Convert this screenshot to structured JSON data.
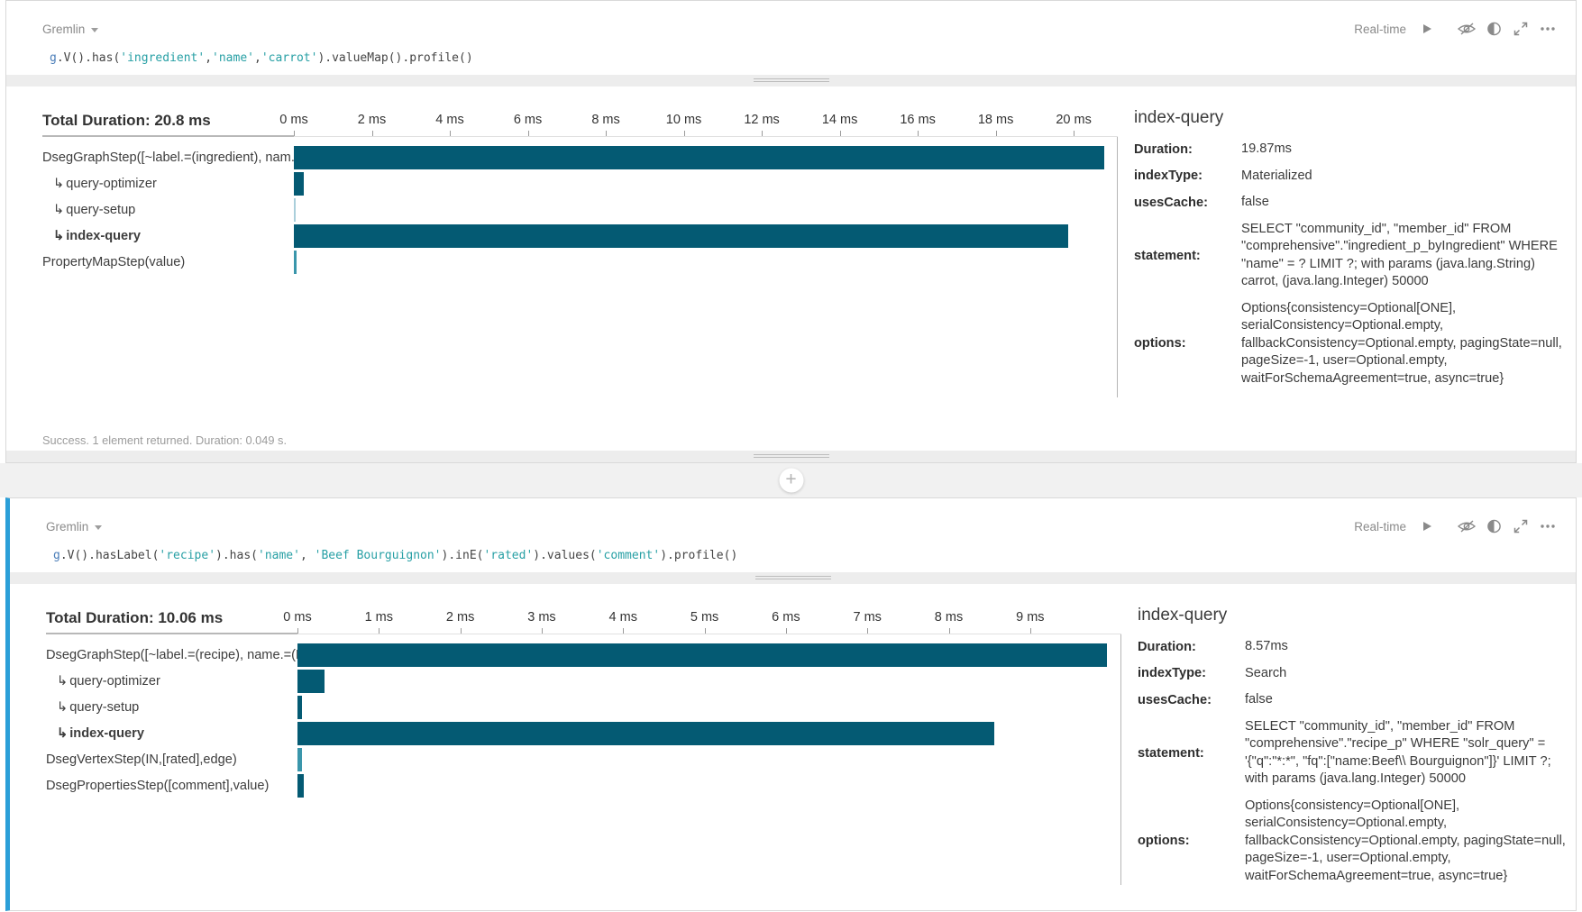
{
  "colors": {
    "bar_dark": "#045a73",
    "bar_light": "#3a96ab",
    "bar_pale": "#aacfdb",
    "active_panel_accent": "#2b9fd8"
  },
  "indent_glyph": "↳",
  "splitter": {
    "add_label": "+"
  },
  "panels": [
    {
      "language_label": "Gremlin",
      "toolbar": {
        "realtime_label": "Real-time",
        "icons": [
          "play-icon",
          "hide-results-icon",
          "toggle-view-icon",
          "expand-icon",
          "more-icon"
        ]
      },
      "query_segments": [
        {
          "t": "var",
          "text": "g"
        },
        {
          "t": "p",
          "text": ".V().has("
        },
        {
          "t": "str",
          "text": "'ingredient'"
        },
        {
          "t": "p",
          "text": ","
        },
        {
          "t": "str",
          "text": "'name'"
        },
        {
          "t": "p",
          "text": ","
        },
        {
          "t": "str",
          "text": "'carrot'"
        },
        {
          "t": "p",
          "text": ").valueMap().profile()"
        }
      ],
      "chart_data": {
        "type": "bar",
        "orientation": "horizontal",
        "title": "Total Duration: 20.8 ms",
        "x_unit": "ms",
        "xlim": [
          0,
          21.13
        ],
        "ticks_ms": [
          0,
          2,
          4,
          6,
          8,
          10,
          12,
          14,
          16,
          18,
          20
        ],
        "tick_labels": [
          "0 ms",
          "2 ms",
          "4 ms",
          "6 ms",
          "8 ms",
          "10 ms",
          "12 ms",
          "14 ms",
          "16 ms",
          "18 ms",
          "20 ms"
        ],
        "rows": [
          {
            "label": "DsegGraphStep([~label.=(ingredient), nam...",
            "value_ms": 20.8,
            "indent": false,
            "bold": false,
            "color": "dark"
          },
          {
            "label": "query-optimizer",
            "value_ms": 0.25,
            "indent": true,
            "bold": false,
            "color": "dark"
          },
          {
            "label": "query-setup",
            "value_ms": 0.05,
            "indent": true,
            "bold": false,
            "color": "pale"
          },
          {
            "label": "index-query",
            "value_ms": 19.87,
            "indent": true,
            "bold": true,
            "color": "dark"
          },
          {
            "label": "PropertyMapStep(value)",
            "value_ms": 0.06,
            "indent": false,
            "bold": false,
            "color": "light"
          }
        ]
      },
      "details": {
        "title": "index-query",
        "fields": [
          {
            "label": "Duration:",
            "value": "19.87ms"
          },
          {
            "label": "indexType:",
            "value": "Materialized"
          },
          {
            "label": "usesCache:",
            "value": "false"
          },
          {
            "label": "statement:",
            "value": "SELECT \"community_id\", \"member_id\" FROM \"comprehensive\".\"ingredient_p_byIngredient\" WHERE \"name\" = ? LIMIT ?; with params (java.lang.String) carrot, (java.lang.Integer) 50000"
          },
          {
            "label": "options:",
            "value": "Options{consistency=Optional[ONE], serialConsistency=Optional.empty, fallbackConsistency=Optional.empty, pagingState=null, pageSize=-1, user=Optional.empty, waitForSchemaAgreement=true, async=true}"
          }
        ]
      },
      "status_text": "Success. 1 element returned. Duration: 0.049 s."
    },
    {
      "active": true,
      "language_label": "Gremlin",
      "toolbar": {
        "realtime_label": "Real-time",
        "icons": [
          "play-icon",
          "hide-results-icon",
          "toggle-view-icon",
          "expand-icon",
          "more-icon"
        ]
      },
      "query_segments": [
        {
          "t": "var",
          "text": "g"
        },
        {
          "t": "p",
          "text": ".V().hasLabel("
        },
        {
          "t": "str",
          "text": "'recipe'"
        },
        {
          "t": "p",
          "text": ").has("
        },
        {
          "t": "str",
          "text": "'name'"
        },
        {
          "t": "p",
          "text": ", "
        },
        {
          "t": "str",
          "text": "'Beef Bourguignon'"
        },
        {
          "t": "p",
          "text": ").inE("
        },
        {
          "t": "str",
          "text": "'rated'"
        },
        {
          "t": "p",
          "text": ").values("
        },
        {
          "t": "str",
          "text": "'comment'"
        },
        {
          "t": "p",
          "text": ").profile()"
        }
      ],
      "chart_data": {
        "type": "bar",
        "orientation": "horizontal",
        "title": "Total Duration: 10.06 ms",
        "x_unit": "ms",
        "xlim": [
          0,
          10.12
        ],
        "ticks_ms": [
          0,
          1,
          2,
          3,
          4,
          5,
          6,
          7,
          8,
          9
        ],
        "tick_labels": [
          "0 ms",
          "1 ms",
          "2 ms",
          "3 ms",
          "4 ms",
          "5 ms",
          "6 ms",
          "7 ms",
          "8 ms",
          "9 ms"
        ],
        "rows": [
          {
            "label": "DsegGraphStep([~label.=(recipe), name.=(B..",
            "value_ms": 9.95,
            "indent": false,
            "bold": false,
            "color": "dark"
          },
          {
            "label": "query-optimizer",
            "value_ms": 0.33,
            "indent": true,
            "bold": false,
            "color": "dark"
          },
          {
            "label": "query-setup",
            "value_ms": 0.05,
            "indent": true,
            "bold": false,
            "color": "dark"
          },
          {
            "label": "index-query",
            "value_ms": 8.57,
            "indent": true,
            "bold": true,
            "color": "dark"
          },
          {
            "label": "DsegVertexStep(IN,[rated],edge)",
            "value_ms": 0.06,
            "indent": false,
            "bold": false,
            "color": "light"
          },
          {
            "label": "DsegPropertiesStep([comment],value)",
            "value_ms": 0.08,
            "indent": false,
            "bold": false,
            "color": "dark"
          }
        ]
      },
      "details": {
        "title": "index-query",
        "fields": [
          {
            "label": "Duration:",
            "value": "8.57ms"
          },
          {
            "label": "indexType:",
            "value": "Search"
          },
          {
            "label": "usesCache:",
            "value": "false"
          },
          {
            "label": "statement:",
            "value": "SELECT \"community_id\", \"member_id\" FROM \"comprehensive\".\"recipe_p\" WHERE \"solr_query\" = '{\"q\":\"*:*\", \"fq\":[\"name:Beef\\\\ Bourguignon\"]}' LIMIT ?; with params (java.lang.Integer) 50000"
          },
          {
            "label": "options:",
            "value": "Options{consistency=Optional[ONE], serialConsistency=Optional.empty, fallbackConsistency=Optional.empty, pagingState=null, pageSize=-1, user=Optional.empty, waitForSchemaAgreement=true, async=true}"
          }
        ]
      }
    }
  ]
}
